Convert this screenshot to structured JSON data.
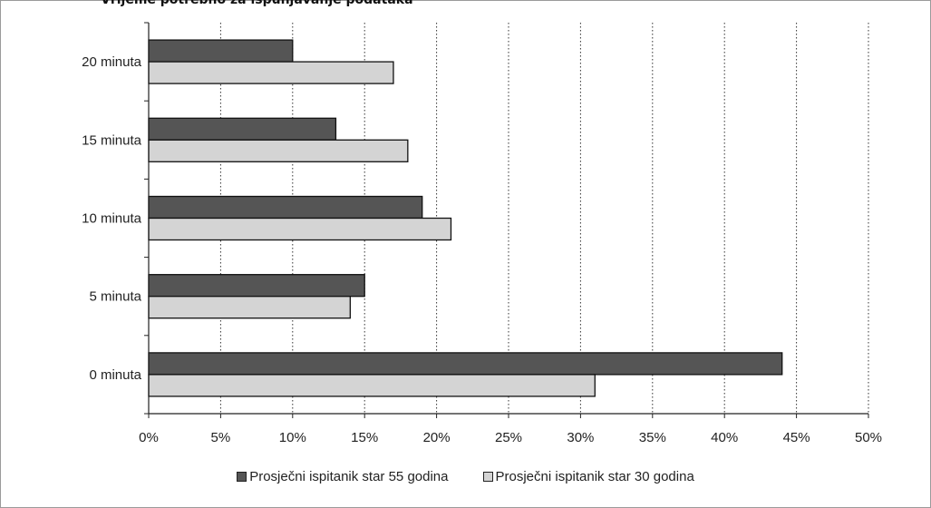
{
  "title_fragment": "Vrijeme potrebno za ispunjavanje podataka",
  "chart_data": {
    "type": "bar",
    "orientation": "horizontal",
    "categories": [
      "0 minuta",
      "5 minuta",
      "10 minuta",
      "15 minuta",
      "20 minuta"
    ],
    "series": [
      {
        "name": "Prosječni ispitanik star 55 godina",
        "color": "#555555",
        "values": [
          44,
          15,
          19,
          13,
          10
        ]
      },
      {
        "name": "Prosječni ispitanik star 30 godina",
        "color": "#d4d4d4",
        "values": [
          31,
          14,
          21,
          18,
          17
        ]
      }
    ],
    "x_ticks": [
      "0%",
      "5%",
      "10%",
      "15%",
      "20%",
      "25%",
      "30%",
      "35%",
      "40%",
      "45%",
      "50%"
    ],
    "xlim": [
      0,
      50
    ],
    "grid": "vertical dotted",
    "legend_position": "bottom"
  }
}
